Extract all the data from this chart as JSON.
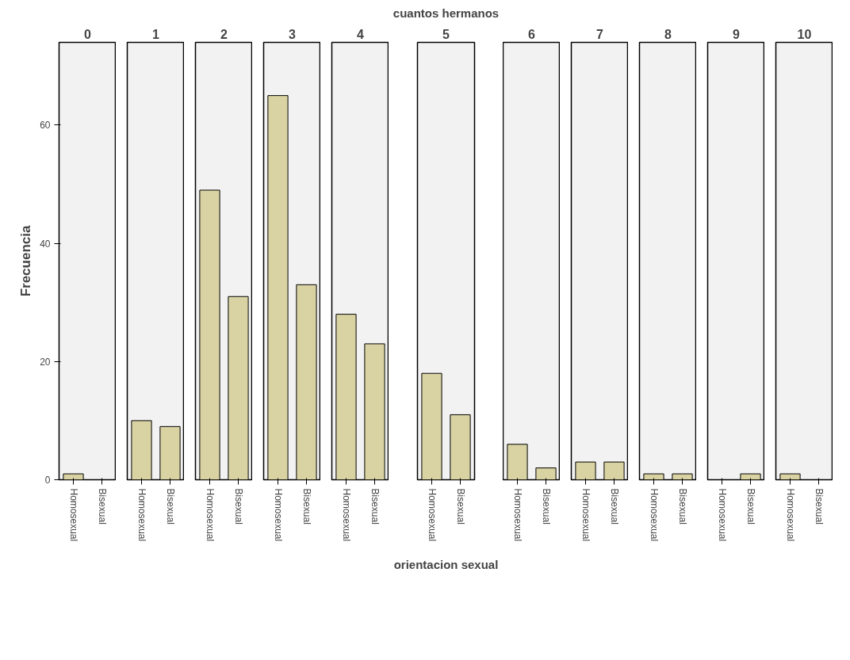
{
  "chart_data": [
    {
      "type": "bar",
      "title": "0",
      "ylabel": "Frecuencia",
      "categories": [
        "Homosexual",
        "Bisexual"
      ],
      "values": [
        1,
        0
      ],
      "color": "#d9d3a3",
      "ylim": [
        0,
        74
      ],
      "yticks": [
        0,
        20,
        40,
        60
      ],
      "grid": false
    },
    {
      "type": "bar",
      "title": "1",
      "categories": [
        "Homosexual",
        "Bisexual"
      ],
      "values": [
        10,
        9
      ],
      "color": "#d9d3a3",
      "ylim": [
        0,
        74
      ],
      "tick_labels": "x",
      "grid": false
    },
    {
      "type": "bar",
      "title": "2",
      "categories": [
        "Homosexual",
        "Bisexual"
      ],
      "values": [
        49,
        31
      ],
      "color": "#d9d3a3",
      "ylim": [
        0,
        74
      ],
      "tick_labels": "x",
      "grid": false
    },
    {
      "type": "bar",
      "title": "3",
      "categories": [
        "Homosexual",
        "Bisexual"
      ],
      "values": [
        65,
        33
      ],
      "color": "#d9d3a3",
      "ylim": [
        0,
        74
      ],
      "tick_labels": "x",
      "grid": false
    },
    {
      "type": "bar",
      "title": "4",
      "categories": [
        "Homosexual",
        "Bisexual"
      ],
      "values": [
        28,
        23
      ],
      "color": "#d9d3a3",
      "ylim": [
        0,
        74
      ],
      "tick_labels": "x",
      "grid": false
    },
    {
      "type": "bar",
      "title": "5",
      "annotations": [
        "cuantos hermanos"
      ],
      "xlabel": "orientacion sexual",
      "categories": [
        "Homosexual",
        "Bisexual"
      ],
      "values": [
        18,
        11
      ],
      "color": "#d9d3a3",
      "ylim": [
        0,
        74
      ],
      "tick_labels": "x",
      "grid": false
    },
    {
      "type": "bar",
      "title": "6",
      "categories": [
        "Homosexual",
        "Bisexual"
      ],
      "values": [
        6,
        2
      ],
      "color": "#d9d3a3",
      "ylim": [
        0,
        74
      ],
      "tick_labels": "x",
      "grid": false
    },
    {
      "type": "bar",
      "title": "7",
      "categories": [
        "Homosexual",
        "Bisexual"
      ],
      "values": [
        3,
        3
      ],
      "color": "#d9d3a3",
      "ylim": [
        0,
        74
      ],
      "tick_labels": "x",
      "grid": false
    },
    {
      "type": "bar",
      "title": "8",
      "categories": [
        "Homosexual",
        "Bisexual"
      ],
      "values": [
        1,
        1
      ],
      "color": "#d9d3a3",
      "ylim": [
        0,
        74
      ],
      "tick_labels": "x",
      "grid": false
    },
    {
      "type": "bar",
      "title": "9",
      "categories": [
        "Homosexual",
        "Bisexual"
      ],
      "values": [
        0,
        1
      ],
      "color": "#d9d3a3",
      "ylim": [
        0,
        74
      ],
      "tick_labels": "x",
      "grid": false
    },
    {
      "type": "bar",
      "title": "10",
      "categories": [
        "Homosexual",
        "Bisexual"
      ],
      "values": [
        1,
        0
      ],
      "color": "#d9d3a3",
      "ylim": [
        0,
        74
      ],
      "tick_labels": "x",
      "grid": false
    }
  ]
}
